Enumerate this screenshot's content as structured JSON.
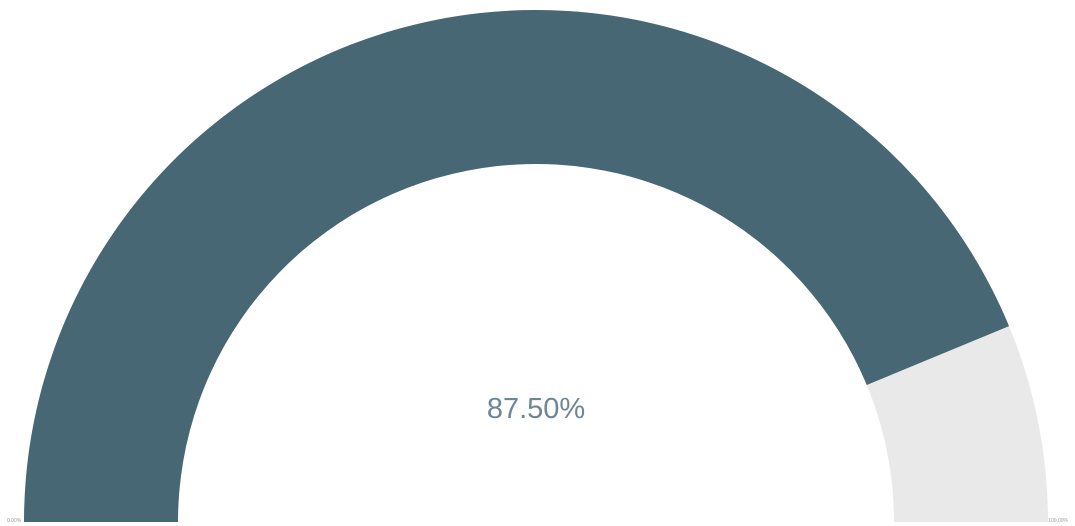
{
  "chart_data": {
    "type": "gauge",
    "value": 87.5,
    "min": 0,
    "max": 100,
    "value_label": "87.50%",
    "min_label": "0.00%",
    "max_label": "100.00%",
    "colors": {
      "fill": "#466773",
      "track": "#e9e9e9",
      "value_text": "#6e8795"
    }
  }
}
